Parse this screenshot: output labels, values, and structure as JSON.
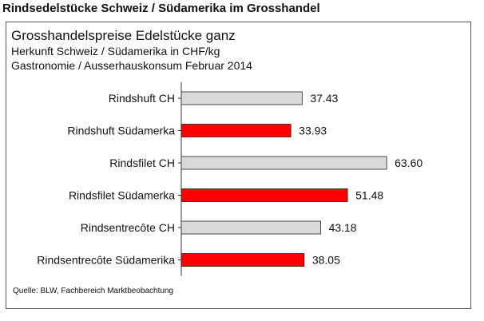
{
  "header": {
    "title": "Rindsedelstücke Schweiz / Südamerika im Grosshandel"
  },
  "chart_data": {
    "type": "bar",
    "orientation": "horizontal",
    "title": "Grosshandelspreise Edelstücke ganz",
    "subtitle_1": "Herkunft Schweiz / Südamerika in CHF/kg",
    "subtitle_2": "Gastronomie / Ausserhauskonsum Februar 2014",
    "categories": [
      "Rindshuft CH",
      "Rindshuft Südamerka",
      "Rindsfilet CH",
      "Rindsfilet Südamerka",
      "Rindsentrecôte CH",
      "Rindsentrecôte Südamerika"
    ],
    "values": [
      37.43,
      33.93,
      63.6,
      51.48,
      43.18,
      38.05
    ],
    "value_labels": [
      "37.43",
      "33.93",
      "63.60",
      "51.48",
      "43.18",
      "38.05"
    ],
    "bar_colors": [
      "#d9d9d9",
      "#ff0000",
      "#d9d9d9",
      "#ff0000",
      "#d9d9d9",
      "#ff0000"
    ],
    "xlim": [
      0,
      70
    ],
    "grid": false,
    "legend": "none"
  },
  "source": "Quelle: BLW, Fachbereich Marktbeobachtung"
}
